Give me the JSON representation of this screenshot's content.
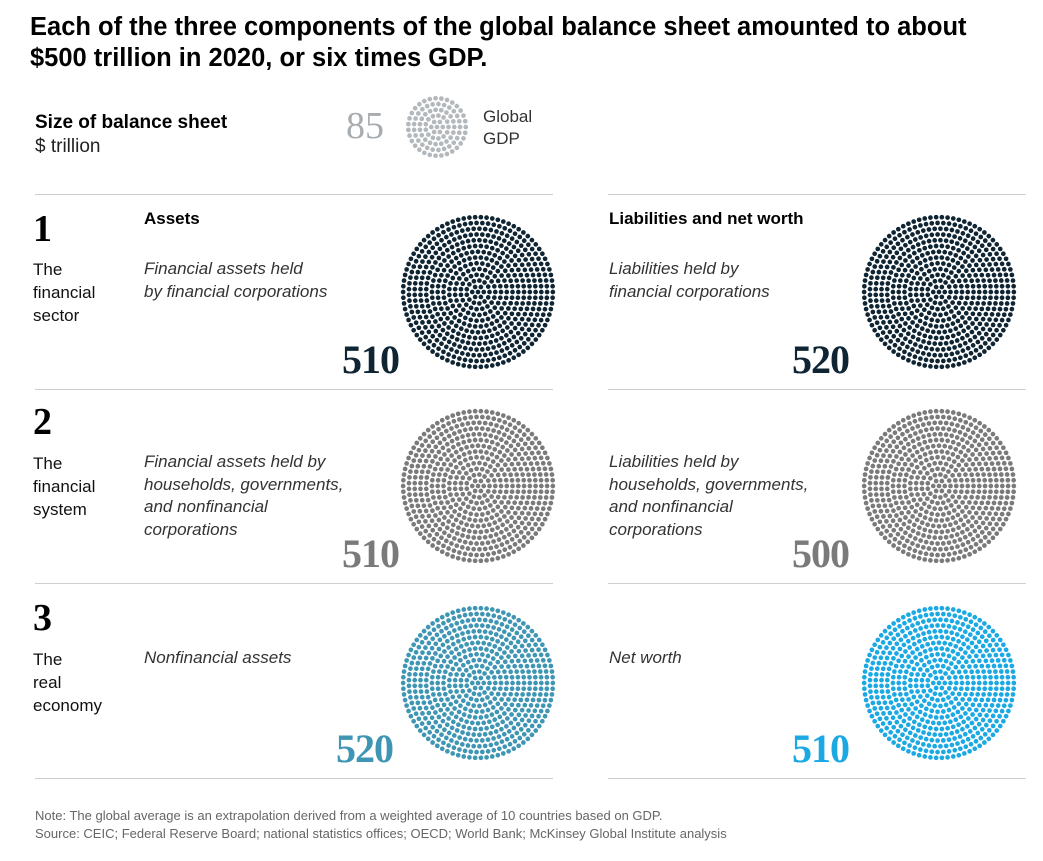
{
  "title": "Each of the three components of the global balance sheet amounted to about $500 trillion in 2020, or six times GDP.",
  "size_label": "Size of balance sheet",
  "size_unit": "$ trillion",
  "gdp": {
    "value": "85",
    "label_line1": "Global",
    "label_line2": "GDP"
  },
  "columns": {
    "assets": "Assets",
    "liabilities": "Liabilities and net worth"
  },
  "rows": [
    {
      "num": "1",
      "name": [
        "The",
        "financial",
        "sector"
      ],
      "assets_desc": [
        "Financial assets held",
        "by financial corporations"
      ],
      "assets_value": "510",
      "liab_desc": [
        "Liabilities held by",
        "financial corporations"
      ],
      "liab_value": "520",
      "color_assets": "#0f2533",
      "color_liab": "#0f2533"
    },
    {
      "num": "2",
      "name": [
        "The",
        "financial",
        "system"
      ],
      "assets_desc": [
        "Financial assets held by",
        "households, governments,",
        "and nonfinancial",
        "corporations"
      ],
      "assets_value": "510",
      "liab_desc": [
        "Liabilities held by",
        "households, governments,",
        "and nonfinancial",
        "corporations"
      ],
      "liab_value": "500",
      "color_assets": "#7a7a7a",
      "color_liab": "#7a7a7a"
    },
    {
      "num": "3",
      "name": [
        "The",
        "real",
        "economy"
      ],
      "assets_desc": [
        "Nonfinancial assets"
      ],
      "assets_value": "520",
      "liab_desc": [
        "Net worth"
      ],
      "liab_value": "510",
      "color_assets": "#3f96b4",
      "color_liab": "#1ba9e4"
    }
  ],
  "note": "Note: The global average is an extrapolation derived from a weighted average of 10 countries based on GDP.",
  "source": "Source: CEIC; Federal Reserve Board; national statistics offices; OECD; World Bank; McKinsey Global Institute analysis",
  "chart_data": {
    "type": "other",
    "unit": "$ trillion",
    "reference": {
      "name": "Global GDP",
      "value": 85,
      "color": "#b3b8bc"
    },
    "categories": [
      "The financial sector",
      "The financial system",
      "The real economy"
    ],
    "series": [
      {
        "name": "Assets",
        "values": [
          510,
          510,
          520
        ]
      },
      {
        "name": "Liabilities and net worth",
        "values": [
          520,
          500,
          510
        ]
      }
    ]
  }
}
